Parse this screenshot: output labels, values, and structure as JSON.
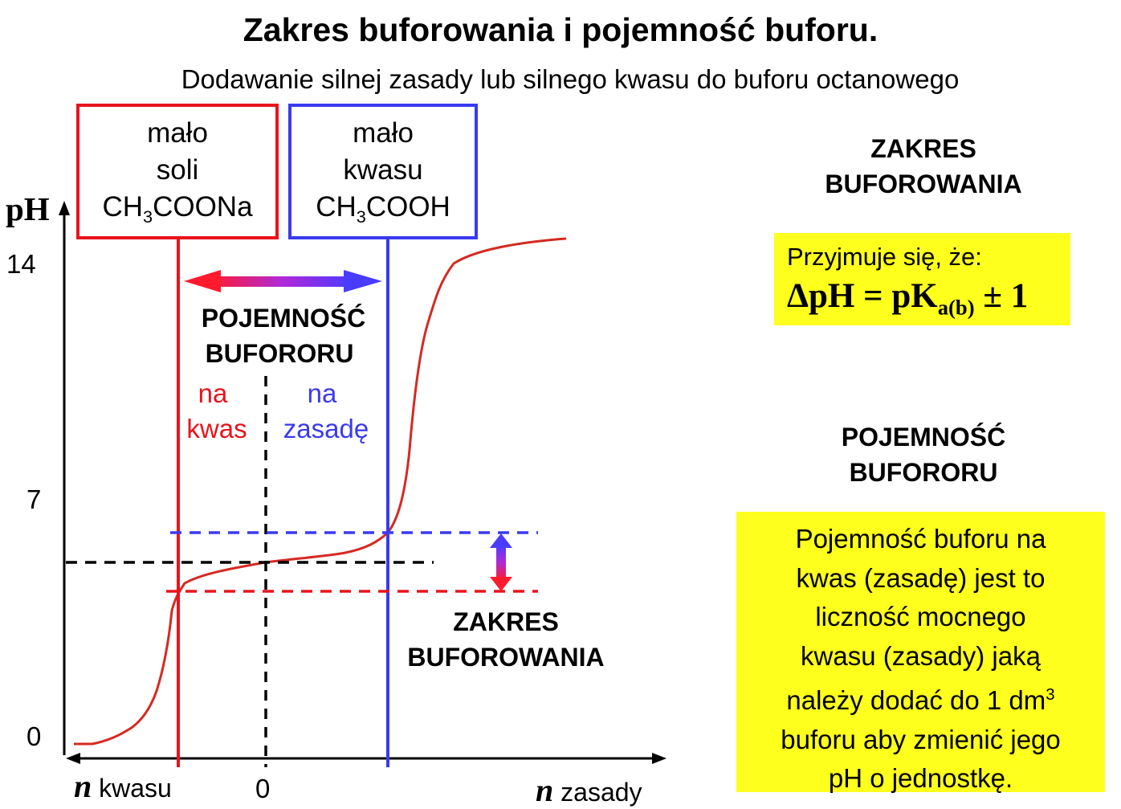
{
  "title": "Zakres buforowania i pojemność buforu.",
  "subtitle": "Dodawanie silnej zasady lub silnego kwasu do buforu octanowego",
  "box_red": {
    "line1": "mało",
    "line2": "soli",
    "formula_pre": "CH",
    "formula_sub": "3",
    "formula_post": "COONa"
  },
  "box_blue": {
    "line1": "mało",
    "line2": "kwasu",
    "formula_pre": "CH",
    "formula_sub": "3",
    "formula_post": "COOH"
  },
  "axis": {
    "y_label": "pH",
    "y_ticks": [
      "14",
      "7",
      "0"
    ],
    "x_left_italic": "n",
    "x_left_text": " kwasu",
    "x_zero": "0",
    "x_right_italic": "n",
    "x_right_text": " zasady"
  },
  "diagram_labels": {
    "capacity_l1": "POJEMNOŚĆ",
    "capacity_l2": "BUFORORU",
    "na_kwas_l1": "na",
    "na_kwas_l2": "kwas",
    "na_zasade_l1": "na",
    "na_zasade_l2": "zasadę",
    "range_l1": "ZAKRES",
    "range_l2": "BUFOROWANIA"
  },
  "right_panel": {
    "range_heading_l1": "ZAKRES",
    "range_heading_l2": "BUFOROWANIA",
    "rule_intro": "Przyjmuje się, że:",
    "rule_formula_pre": "ΔpH = pK",
    "rule_formula_sub": "a(b)",
    "rule_formula_post": " ± 1",
    "capacity_heading_l1": "POJEMNOŚĆ",
    "capacity_heading_l2": "BUFORORU",
    "def_l1": "Pojemność buforu na",
    "def_l2": "kwas (zasadę) jest to",
    "def_l3": "liczność mocnego",
    "def_l4": "kwasu (zasady) jaką",
    "def_l5_pre": "należy dodać do 1 dm",
    "def_l5_sup": "3",
    "def_l6": "buforu aby zmienić jego",
    "def_l7": "pH o jednostkę."
  },
  "colors": {
    "red": "#e8141c",
    "blue": "#3a3af0",
    "curve": "#d42a22",
    "yellow_box": "#ffff1e"
  }
}
